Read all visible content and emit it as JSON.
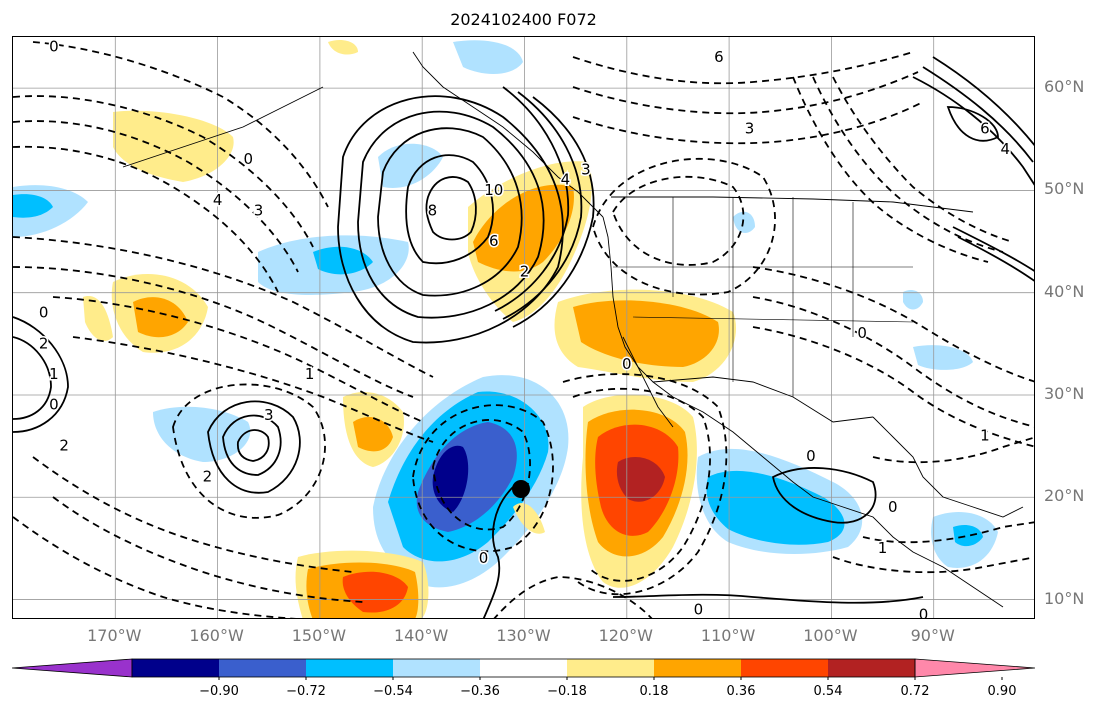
{
  "title": "2024102400 F072",
  "lat_labels": [
    {
      "text": "60°N",
      "value": 60
    },
    {
      "text": "50°N",
      "value": 50
    },
    {
      "text": "40°N",
      "value": 40
    },
    {
      "text": "30°N",
      "value": 30
    },
    {
      "text": "20°N",
      "value": 20
    },
    {
      "text": "10°N",
      "value": 10
    }
  ],
  "lon_labels": [
    {
      "text": "170°W",
      "value": -170
    },
    {
      "text": "160°W",
      "value": -160
    },
    {
      "text": "150°W",
      "value": -150
    },
    {
      "text": "140°W",
      "value": -140
    },
    {
      "text": "130°W",
      "value": -130
    },
    {
      "text": "120°W",
      "value": -120
    },
    {
      "text": "110°W",
      "value": -110
    },
    {
      "text": "100°W",
      "value": -100
    },
    {
      "text": "90°W",
      "value": -90
    }
  ],
  "map_extent": {
    "lon_min": -180,
    "lon_max": -80,
    "lat_min": 8,
    "lat_max": 65
  },
  "colorbar": {
    "colors": [
      "#9932cc",
      "#00008b",
      "#3a5fcd",
      "#00bfff",
      "#b0e2ff",
      "#ffffff",
      "#ffec8b",
      "#ffa500",
      "#ff4500",
      "#b22222",
      "#ff88aa"
    ],
    "tick_labels": [
      "−0.90",
      "−0.72",
      "−0.54",
      "−0.36",
      "−0.18",
      "0.18",
      "0.36",
      "0.54",
      "0.72",
      "0.90"
    ]
  },
  "contour_labels": [
    {
      "text": "0",
      "lon": -176,
      "lat": 64
    },
    {
      "text": "6",
      "lon": -111,
      "lat": 63
    },
    {
      "text": "3",
      "lon": -108,
      "lat": 56
    },
    {
      "text": "3",
      "lon": -124,
      "lat": 52
    },
    {
      "text": "4",
      "lon": -126,
      "lat": 51
    },
    {
      "text": "0",
      "lon": -157,
      "lat": 53
    },
    {
      "text": "4",
      "lon": -160,
      "lat": 49
    },
    {
      "text": "3",
      "lon": -156,
      "lat": 48
    },
    {
      "text": "8",
      "lon": -139,
      "lat": 48
    },
    {
      "text": "6",
      "lon": -133,
      "lat": 45
    },
    {
      "text": "2",
      "lon": -130,
      "lat": 42
    },
    {
      "text": "10",
      "lon": -133,
      "lat": 50
    },
    {
      "text": "4",
      "lon": -83,
      "lat": 54
    },
    {
      "text": "6",
      "lon": -85,
      "lat": 56
    },
    {
      "text": "0",
      "lon": -177,
      "lat": 38
    },
    {
      "text": "2",
      "lon": -177,
      "lat": 35
    },
    {
      "text": "1",
      "lon": -176,
      "lat": 32
    },
    {
      "text": "0",
      "lon": -176,
      "lat": 29
    },
    {
      "text": "2",
      "lon": -175,
      "lat": 25
    },
    {
      "text": "2",
      "lon": -161,
      "lat": 22
    },
    {
      "text": "3",
      "lon": -155,
      "lat": 28
    },
    {
      "text": "1",
      "lon": -151,
      "lat": 32
    },
    {
      "text": "0",
      "lon": -120,
      "lat": 33
    },
    {
      "text": "0",
      "lon": -97,
      "lat": 36
    },
    {
      "text": "0",
      "lon": -102,
      "lat": 24
    },
    {
      "text": "0",
      "lon": -94,
      "lat": 19
    },
    {
      "text": "1",
      "lon": -85,
      "lat": 26
    },
    {
      "text": "1",
      "lon": -95,
      "lat": 15
    },
    {
      "text": "0",
      "lon": -134,
      "lat": 14
    },
    {
      "text": "0",
      "lon": -113,
      "lat": 9
    },
    {
      "text": "0",
      "lon": -91,
      "lat": 8.5
    }
  ]
}
